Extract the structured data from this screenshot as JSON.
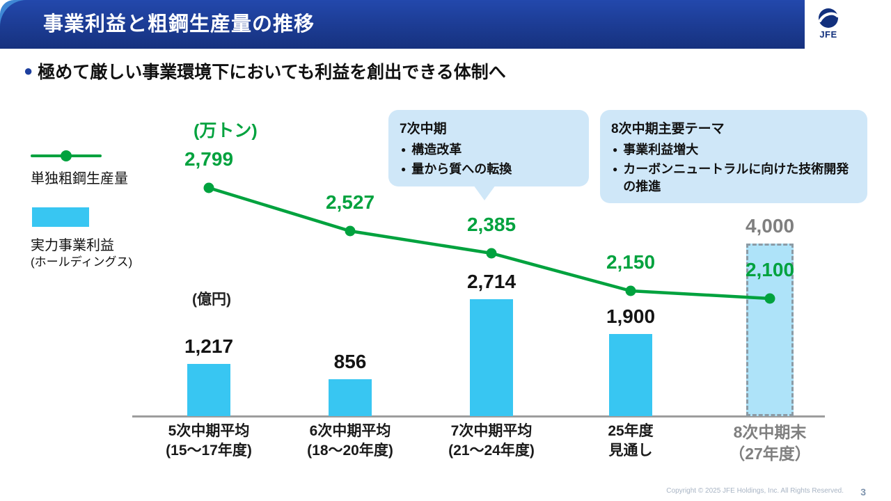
{
  "header": {
    "title": "事業利益と粗鋼生産量の推移",
    "logo_text": "JFE"
  },
  "subtitle": {
    "bullet": "●",
    "text": "極めて厳しい事業環境下においても利益を創出できる体制へ"
  },
  "legend": {
    "line_label": "単独粗鋼生産量",
    "bar_label_1": "実力事業利益",
    "bar_label_2": "(ホールディングス)"
  },
  "units": {
    "line": "(万トン)",
    "bar": "(億円)"
  },
  "callouts": {
    "c7": {
      "title": "7次中期",
      "bullet": "●",
      "items": [
        "構造改革",
        "量から質への転換"
      ]
    },
    "c8": {
      "title": "8次中期主要テーマ",
      "bullet": "●",
      "items": [
        "事業利益増大",
        "カーボンニュートラルに向けた技術開発の推進"
      ]
    }
  },
  "chart_data": {
    "type": "combo",
    "categories": [
      "5次中期平均\n(15〜17年度)",
      "6次中期平均\n(18〜20年度)",
      "7次中期平均\n(21〜24年度)",
      "25年度\n見通し",
      "8次中期末\n（27年度）"
    ],
    "series": [
      {
        "name": "実力事業利益(ホールディングス)",
        "type": "bar",
        "unit": "億円",
        "values": [
          1217,
          856,
          2714,
          1900,
          4000
        ],
        "labels": [
          "1,217",
          "856",
          "2,714",
          "1,900",
          "4,000"
        ],
        "forecast_index": 4
      },
      {
        "name": "単独粗鋼生産量",
        "type": "line",
        "unit": "万トン",
        "values": [
          2799,
          2527,
          2385,
          2150,
          2100
        ],
        "labels": [
          "2,799",
          "2,527",
          "2,385",
          "2,150",
          "2,100"
        ]
      }
    ],
    "colors": {
      "bar": "#38c6f2",
      "bar_forecast_fill": "#aee3f9",
      "bar_forecast_border": "#8c9ba5",
      "line": "#00a23e",
      "bar_label": "#141414",
      "forecast_label": "#7f7f7f",
      "category": "#1a1a1a",
      "category_forecast": "#7f7f7f",
      "header_blue": "#1d3c98",
      "callout_bg": "#cfe7f8"
    },
    "axis": {
      "baseline_color": "#9d9d9d",
      "grid": false,
      "legend_position": "left"
    }
  },
  "footer": {
    "copyright": "Copyright © 2025 JFE Holdings, Inc. All Rights Reserved.",
    "page": "3"
  }
}
